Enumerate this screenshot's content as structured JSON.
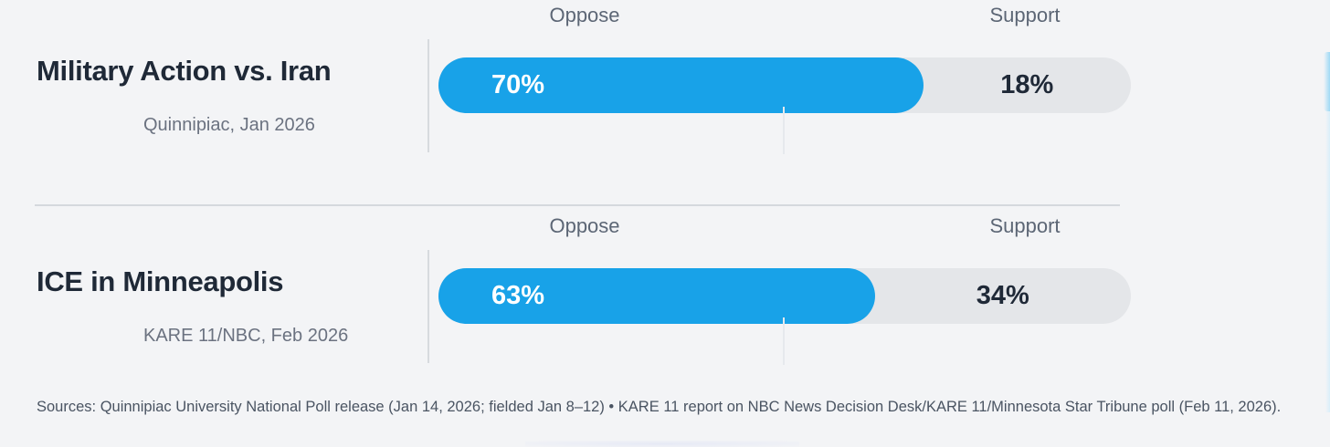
{
  "chart_data": {
    "type": "bar",
    "orientation": "horizontal",
    "categories": [
      "Military Action vs. Iran",
      "ICE in Minneapolis"
    ],
    "series": [
      {
        "name": "Oppose",
        "values": [
          70,
          63
        ],
        "color": "#18a2e8"
      },
      {
        "name": "Support",
        "values": [
          18,
          34
        ],
        "color": "#e4e6e9"
      }
    ],
    "category_subtitles": [
      "Quinnipiac, Jan 2026",
      "KARE 11/NBC, Feb 2026"
    ],
    "axis": {
      "range": [
        0,
        100
      ],
      "midpoint_tick_pct": 50,
      "gridlines": "0% and 50% vertical ticks"
    },
    "legend_position": "column headers above each bar",
    "title": "",
    "footnote": "Sources: Quinnipiac University National Poll release (Jan 14, 2026; fielded Jan 8–12) • KARE 11 report on NBC News Decision Desk/KARE 11/Minnesota Star Tribune poll (Feb 11, 2026)."
  },
  "rows": [
    {
      "title": "Military Action vs. Iran",
      "subtitle": "Quinnipiac, Jan 2026",
      "oppose_header": "Oppose",
      "support_header": "Support",
      "oppose_pct": 70,
      "oppose_value": "70%",
      "support_value": "18%"
    },
    {
      "title": "ICE in Minneapolis",
      "subtitle": "KARE 11/NBC, Feb 2026",
      "oppose_header": "Oppose",
      "support_header": "Support",
      "oppose_pct": 63,
      "oppose_value": "63%",
      "support_value": "34%"
    }
  ],
  "footer": {
    "sources": "Sources: Quinnipiac University National Poll release (Jan 14, 2026; fielded Jan 8–12) • KARE 11 report on NBC News Decision Desk/KARE 11/Minnesota Star Tribune poll (Feb 11, 2026)."
  },
  "colors": {
    "background": "#f3f4f6",
    "oppose_bar": "#18a2e8",
    "support_track": "#e4e6e9",
    "title_text": "#1f2937",
    "muted_text": "#6b7280",
    "header_text": "#5c6675",
    "divider": "#d5d8dd"
  }
}
